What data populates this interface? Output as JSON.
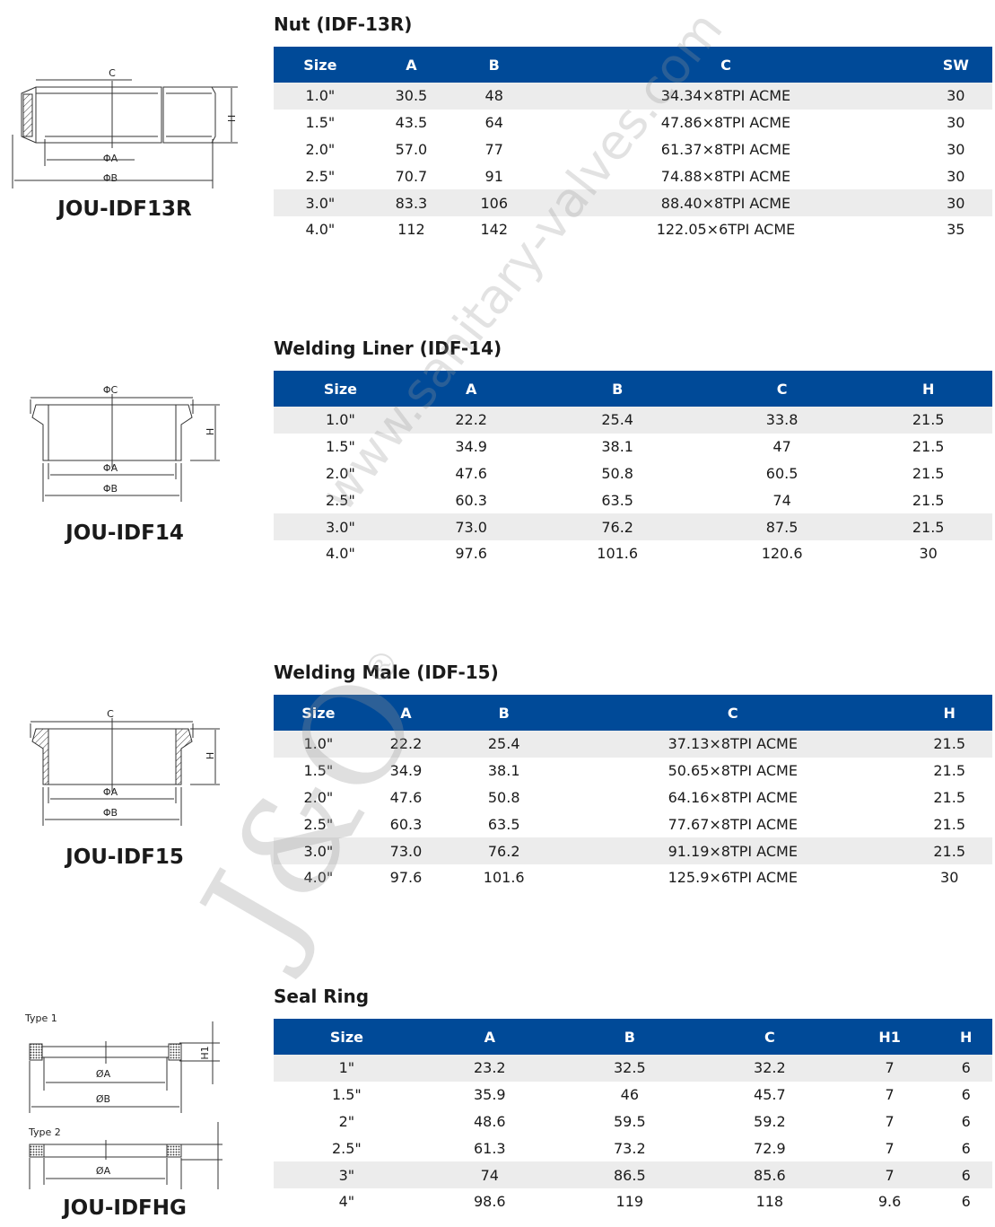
{
  "colors": {
    "header_bg": "#004a98",
    "header_text": "#ffffff",
    "row_shade": "#ececec"
  },
  "sections": [
    {
      "title": "Nut (IDF-13R)",
      "model": "JOU-IDF13R",
      "drawing_labels": [
        "C",
        "ΦA",
        "ΦB",
        "H"
      ],
      "columns": [
        "Size",
        "A",
        "B",
        "C",
        "SW"
      ],
      "rows": [
        [
          "1.0\"",
          "30.5",
          "48",
          "34.34×8TPI ACME",
          "30"
        ],
        [
          "1.5\"",
          "43.5",
          "64",
          "47.86×8TPI ACME",
          "30"
        ],
        [
          "2.0\"",
          "57.0",
          "77",
          "61.37×8TPI ACME",
          "30"
        ],
        [
          "2.5\"",
          "70.7",
          "91",
          "74.88×8TPI ACME",
          "30"
        ],
        [
          "3.0\"",
          "83.3",
          "106",
          "88.40×8TPI ACME",
          "30"
        ],
        [
          "4.0\"",
          "112",
          "142",
          "122.05×6TPI ACME",
          "35"
        ]
      ]
    },
    {
      "title": "Welding Liner (IDF-14)",
      "model": "JOU-IDF14",
      "drawing_labels": [
        "ΦC",
        "ΦA",
        "ΦB",
        "H"
      ],
      "columns": [
        "Size",
        "A",
        "B",
        "C",
        "H"
      ],
      "rows": [
        [
          "1.0\"",
          "22.2",
          "25.4",
          "33.8",
          "21.5"
        ],
        [
          "1.5\"",
          "34.9",
          "38.1",
          "47",
          "21.5"
        ],
        [
          "2.0\"",
          "47.6",
          "50.8",
          "60.5",
          "21.5"
        ],
        [
          "2.5\"",
          "60.3",
          "63.5",
          "74",
          "21.5"
        ],
        [
          "3.0\"",
          "73.0",
          "76.2",
          "87.5",
          "21.5"
        ],
        [
          "4.0\"",
          "97.6",
          "101.6",
          "120.6",
          "30"
        ]
      ]
    },
    {
      "title": "Welding Male (IDF-15)",
      "model": "JOU-IDF15",
      "drawing_labels": [
        "C",
        "ΦA",
        "ΦB",
        "H"
      ],
      "columns": [
        "Size",
        "A",
        "B",
        "C",
        "H"
      ],
      "rows": [
        [
          "1.0\"",
          "22.2",
          "25.4",
          "37.13×8TPI ACME",
          "21.5"
        ],
        [
          "1.5\"",
          "34.9",
          "38.1",
          "50.65×8TPI ACME",
          "21.5"
        ],
        [
          "2.0\"",
          "47.6",
          "50.8",
          "64.16×8TPI ACME",
          "21.5"
        ],
        [
          "2.5\"",
          "60.3",
          "63.5",
          "77.67×8TPI ACME",
          "21.5"
        ],
        [
          "3.0\"",
          "73.0",
          "76.2",
          "91.19×8TPI ACME",
          "21.5"
        ],
        [
          "4.0\"",
          "97.6",
          "101.6",
          "125.9×6TPI ACME",
          "30"
        ]
      ]
    },
    {
      "title": "Seal Ring",
      "model": "JOU-IDFHG",
      "drawing_labels": [
        "Type 1",
        "ØA",
        "ØB",
        "H1",
        "Type 2",
        "ØA"
      ],
      "columns": [
        "Size",
        "A",
        "B",
        "C",
        "H1",
        "H"
      ],
      "rows": [
        [
          "1\"",
          "23.2",
          "32.5",
          "32.2",
          "7",
          "6"
        ],
        [
          "1.5\"",
          "35.9",
          "46",
          "45.7",
          "7",
          "6"
        ],
        [
          "2\"",
          "48.6",
          "59.5",
          "59.2",
          "7",
          "6"
        ],
        [
          "2.5\"",
          "61.3",
          "73.2",
          "72.9",
          "7",
          "6"
        ],
        [
          "3\"",
          "74",
          "86.5",
          "85.6",
          "7",
          "6"
        ],
        [
          "4\"",
          "98.6",
          "119",
          "118",
          "9.6",
          "6"
        ]
      ]
    }
  ],
  "watermark": {
    "url": "www.sanitary-valves.com",
    "logo": "J&O",
    "logo_mark": "®"
  }
}
